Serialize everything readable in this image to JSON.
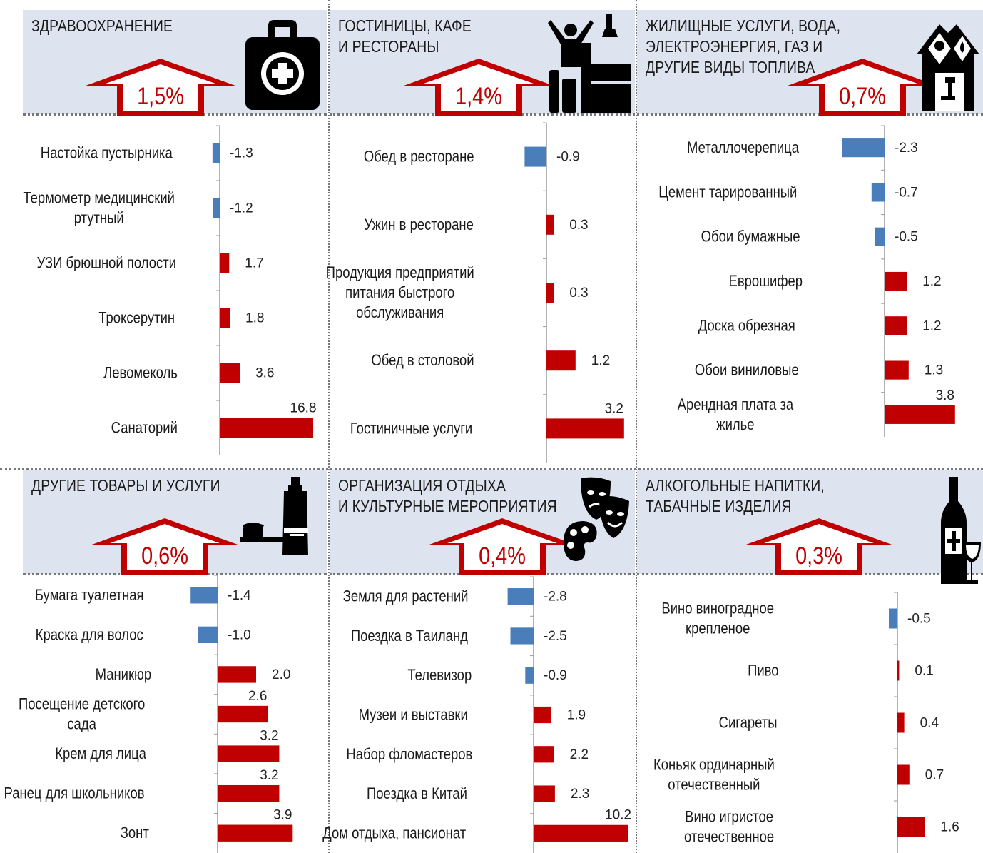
{
  "chart_data": [
    {
      "type": "bar",
      "orientation": "horizontal",
      "title": "ЗДРАВООХРАНЕНИЕ",
      "headline": "1,5%",
      "categories": [
        "Настойка  пустырника",
        "Термометр медицинский  ртутный",
        "УЗИ брюшной полости",
        "Троксерутин",
        "Левомеколь",
        "Санаторий"
      ],
      "values": [
        -1.3,
        -1.2,
        1.7,
        1.8,
        3.6,
        16.8
      ],
      "value_labels": [
        "-1.3",
        "-1.2",
        "1.7",
        "1.8",
        "3.6",
        "16.8"
      ],
      "icon": "first-aid-kit-icon"
    },
    {
      "type": "bar",
      "orientation": "horizontal",
      "title": "ГОСТИНИЦЫ, КАФЕ\n И РЕСТОРАНЫ",
      "headline": "1,4%",
      "categories": [
        "Обед в ресторане",
        "Ужин в ресторане",
        "Продукция  предприятий питания  быстрого обслуживания",
        "Обед в столовой",
        "Гостиничные  услуги"
      ],
      "values": [
        -0.9,
        0.3,
        0.3,
        1.2,
        3.2
      ],
      "value_labels": [
        "-0.9",
        "0.3",
        "0.3",
        "1.2",
        "3.2"
      ],
      "icon": "hotel-traveler-icon"
    },
    {
      "type": "bar",
      "orientation": "horizontal",
      "title": "ЖИЛИЩНЫЕ  УСЛУГИ, ВОДА,\n ЭЛЕКТРОЭНЕРГИЯ, ГАЗ И\n ДРУГИЕ ВИДЫ ТОПЛИВА",
      "headline": "0,7%",
      "categories": [
        "Металлочерепица",
        "Цемент тарированный",
        "Обои  бумажные",
        "Еврошифер",
        "Доска обрезная",
        "Обои  виниловые",
        "Арендная  плата  за жилье"
      ],
      "values": [
        -2.3,
        -0.7,
        -0.5,
        1.2,
        1.2,
        1.3,
        3.8
      ],
      "value_labels": [
        "-2.3",
        "-0.7",
        "-0.5",
        "1.2",
        "1.2",
        "1.3",
        "3.8"
      ],
      "icon": "house-utilities-icon"
    },
    {
      "type": "bar",
      "orientation": "horizontal",
      "title": "ДРУГИЕ  ТОВАРЫ И УСЛУГИ",
      "headline": "0,6%",
      "categories": [
        "Бумага туалетная",
        "Краска для волос",
        "Маникюр",
        "Посещение детского сада",
        "Крем для лица",
        "Ранец для школьников",
        "Зонт"
      ],
      "values": [
        -1.4,
        -1.0,
        2.0,
        2.6,
        3.2,
        3.2,
        3.9
      ],
      "value_labels": [
        "-1.4",
        "-1.0",
        "2.0",
        "2.6",
        "3.2",
        "3.2",
        "3.9"
      ],
      "icon": "toothbrush-toothpaste-icon"
    },
    {
      "type": "bar",
      "orientation": "horizontal",
      "title": "ОРГАНИЗАЦИЯ  ОТДЫХА\nИ КУЛЬТУРНЫЕ  МЕРОПРИЯТИЯ",
      "headline": "0,4%",
      "categories": [
        "Земля для  растений",
        "Поездка в Таиланд",
        "Телевизор",
        "Музеи и выставки",
        "Набор  фломастеров",
        "Поездка в Китай",
        "Дом отдыха,  пансионат"
      ],
      "values": [
        -2.8,
        -2.5,
        -0.9,
        1.9,
        2.2,
        2.3,
        10.2
      ],
      "value_labels": [
        "-2.8",
        "-2.5",
        "-0.9",
        "1.9",
        "2.2",
        "2.3",
        "10.2"
      ],
      "icon": "theater-masks-palette-icon"
    },
    {
      "type": "bar",
      "orientation": "horizontal",
      "title": "АЛКОГОЛЬНЫЕ  НАПИТКИ,\nТАБАЧНЫЕ  ИЗДЕЛИЯ",
      "headline": "0,3%",
      "categories": [
        "Вино  виноградное крепленое",
        "Пиво",
        "Сигареты",
        "Коньяк  ординарный отечественный",
        "Вино  игристое отечественное"
      ],
      "values": [
        -0.5,
        0.1,
        0.4,
        0.7,
        1.6
      ],
      "value_labels": [
        "-0.5",
        "0.1",
        "0.4",
        "0.7",
        "1.6"
      ],
      "icon": "wine-bottle-glass-icon"
    }
  ],
  "colors": {
    "positive": "#c00000",
    "negative": "#4a7ebb",
    "header_bg": "#dde4f0",
    "arrow": "#c00000"
  }
}
